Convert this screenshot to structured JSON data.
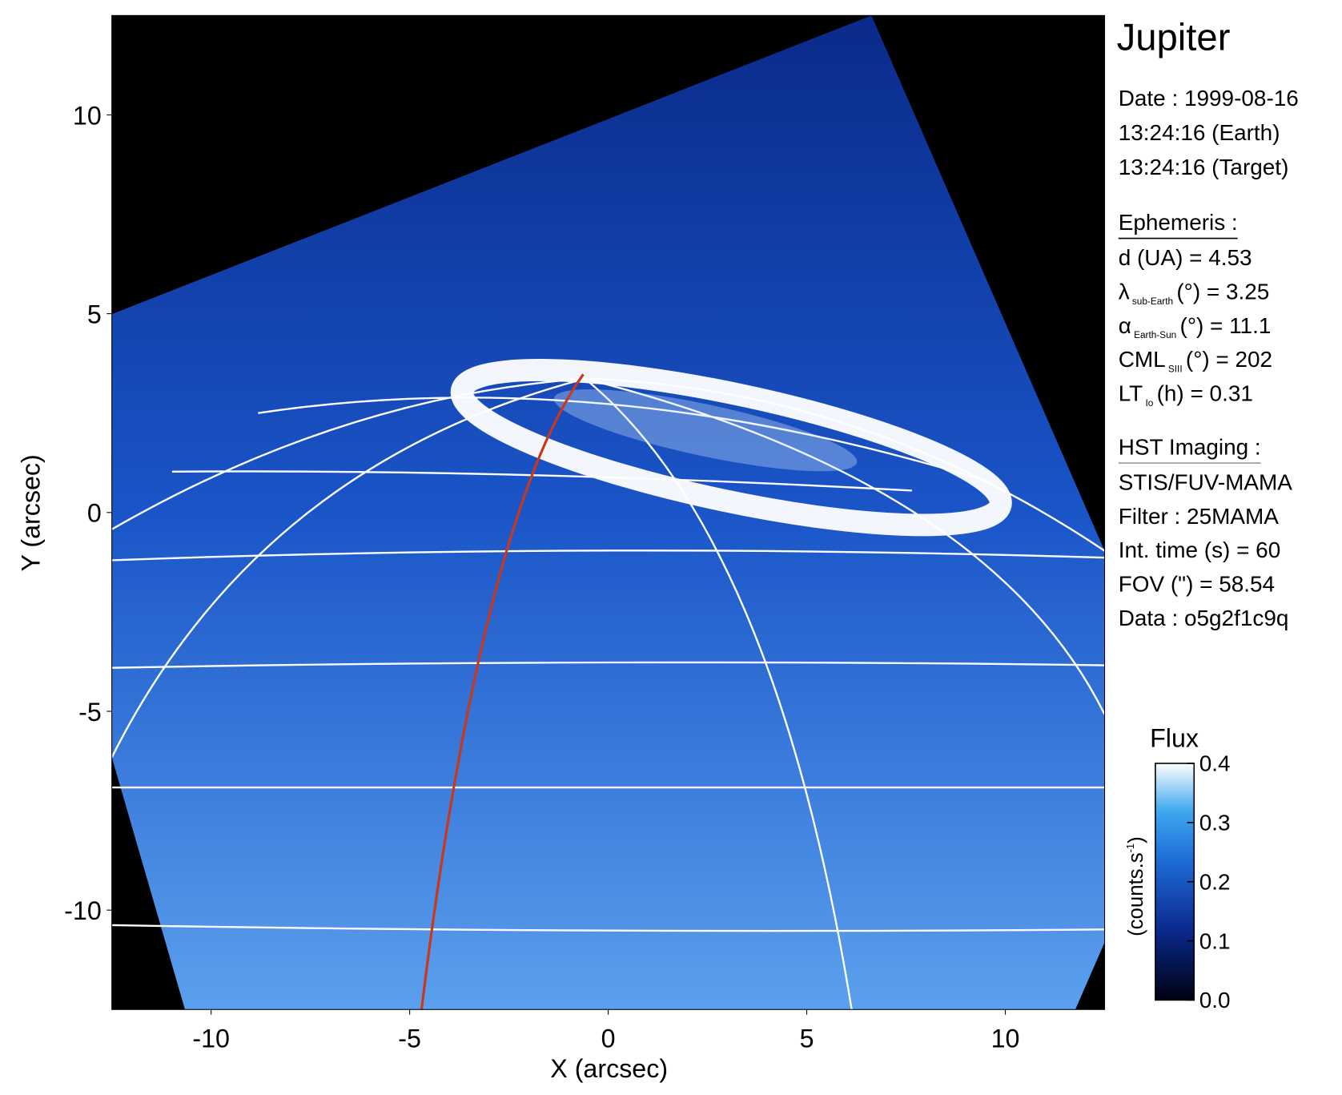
{
  "chart_data": {
    "type": "image",
    "xlabel": "X (arcsec)",
    "ylabel": "Y (arcsec)",
    "xlim": [
      -12.5,
      12.5
    ],
    "ylim": [
      -12.5,
      12.5
    ],
    "xticks": [
      -10,
      -5,
      0,
      5,
      10
    ],
    "yticks": [
      -10,
      -5,
      0,
      5,
      10
    ],
    "panel": {
      "title": "Jupiter",
      "date_lines": [
        "Date : 1999-08-16",
        "13:24:16 (Earth)",
        "13:24:16 (Target)"
      ],
      "ephemeris": {
        "heading": "Ephemeris :",
        "rows": [
          {
            "main": "d (UA)    = 4.53"
          },
          {
            "main": "λ",
            "sub": "sub-Earth",
            "rest": "(°) = 3.25"
          },
          {
            "main": "α",
            "sub": "Earth-Sun",
            "rest": "(°) = 11.1"
          },
          {
            "main": "CML",
            "sub": "SIII",
            "rest": "(°) = 202"
          },
          {
            "main": "LT",
            "sub": "Io",
            "rest": "(h) = 0.31"
          }
        ]
      },
      "imaging": {
        "heading": "HST Imaging :",
        "rows": [
          "STIS/FUV-MAMA",
          "Filter : 25MAMA",
          "Int. time (s) = 60",
          "FOV (\") = 58.54",
          "Data : o5g2f1c9q"
        ]
      }
    },
    "colorbar": {
      "title": "Flux",
      "label": {
        "main": "(counts.s",
        "sup": "-1",
        "end": ")"
      },
      "lim": [
        0,
        0.4
      ],
      "ticks": [
        {
          "value": 0,
          "label": "0.0"
        },
        0.1,
        0.2,
        0.3,
        0.4
      ]
    }
  }
}
